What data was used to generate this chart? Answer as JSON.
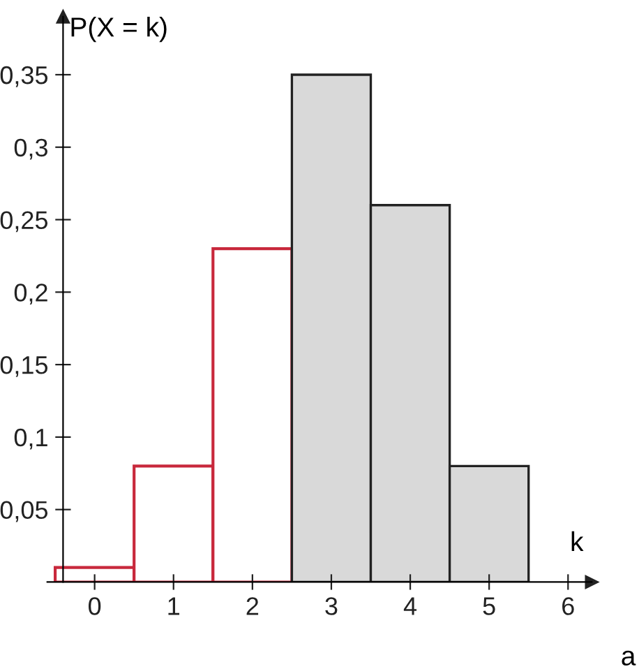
{
  "chart_data": {
    "type": "bar",
    "xlabel": "k",
    "ylabel": "P(X = k)",
    "x": [
      0,
      1,
      2,
      3,
      4,
      5
    ],
    "series": [
      {
        "color": "#c8283c",
        "values": [
          0.01,
          0.08,
          0.23,
          null,
          null,
          null
        ]
      },
      {
        "color": "#d9d9d9",
        "values": [
          null,
          null,
          null,
          0.35,
          0.26,
          0.08
        ]
      }
    ],
    "xlim": [
      -0.6,
      6.3
    ],
    "ylim": [
      0,
      0.39
    ],
    "xticks": [
      0,
      1,
      2,
      3,
      4,
      5,
      6
    ],
    "yticks": [
      {
        "value": 0.05,
        "label": "0,05"
      },
      {
        "value": 0.1,
        "label": "0,1"
      },
      {
        "value": 0.15,
        "label": "0,15"
      },
      {
        "value": 0.2,
        "label": "0,2"
      },
      {
        "value": 0.25,
        "label": "0,25"
      },
      {
        "value": 0.3,
        "label": "0,3"
      },
      {
        "value": 0.35,
        "label": "0,35"
      }
    ],
    "grid": false,
    "annotations": [
      "a"
    ]
  }
}
